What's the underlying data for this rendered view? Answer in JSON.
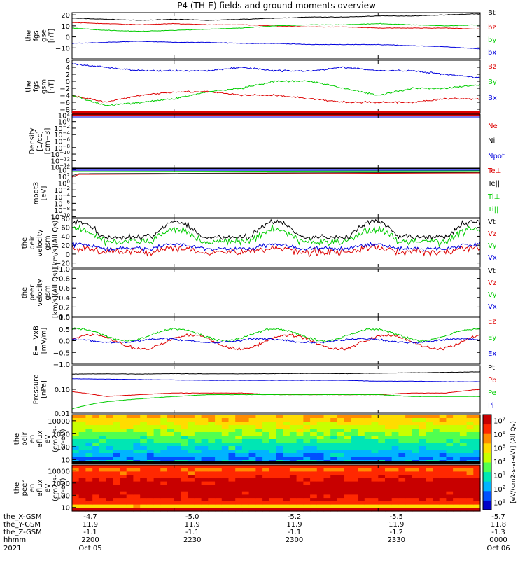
{
  "title": "P4 (TH-E) fields and ground moments overview",
  "time_axis": {
    "start": "2021-10-05 22:00",
    "end": "2021-10-06 00:00",
    "row_labels": [
      "the_X-GSM",
      "the_Y-GSM",
      "the_Z-GSM",
      "hhmm",
      "2021"
    ],
    "ticks": [
      {
        "x": "-4.7",
        "y": "11.9",
        "z": "-1.1",
        "hhmm": "2200",
        "date": "Oct 05"
      },
      {
        "x": "-5.0",
        "y": "11.9",
        "z": "-1.1",
        "hhmm": "2230",
        "date": ""
      },
      {
        "x": "-5.2",
        "y": "11.9",
        "z": "-1.1",
        "hhmm": "2300",
        "date": ""
      },
      {
        "x": "-5.5",
        "y": "11.9",
        "z": "-1.2",
        "hhmm": "2330",
        "date": ""
      },
      {
        "x": "-5.7",
        "y": "11.8",
        "z": "-1.3",
        "hhmm": "0000",
        "date": "Oct 06"
      }
    ]
  },
  "spectro_colorbar": {
    "unit": "[eV/(cm2-s-sr-eV)]",
    "qualifier": "(All Qs)",
    "ticks": [
      "10^1",
      "10^2",
      "10^3",
      "10^4",
      "10^5",
      "10^6",
      "10^7"
    ],
    "colors": [
      "#0000c8",
      "#0050ff",
      "#00b4ff",
      "#00e6b4",
      "#50ff50",
      "#c8ff00",
      "#ffdc00",
      "#ff8c00",
      "#ff2800",
      "#c80000"
    ]
  },
  "chart_data": [
    {
      "type": "line",
      "ylabel": [
        "the",
        "fgs",
        "gse",
        "[nT]"
      ],
      "ylim": [
        -20,
        22
      ],
      "yticks": [
        "20",
        "10",
        "0",
        "−10"
      ],
      "yticks_values": [
        20,
        10,
        0,
        -10
      ],
      "series": [
        {
          "name": "Bt",
          "color": "#000000",
          "values": [
            17,
            16,
            15,
            16,
            15,
            16,
            17,
            18,
            18,
            19,
            19,
            20,
            21
          ]
        },
        {
          "name": "bz",
          "color": "#dd0000",
          "values": [
            13,
            12,
            11,
            12,
            11,
            11,
            10,
            9,
            9,
            8,
            8,
            8,
            7
          ]
        },
        {
          "name": "by",
          "color": "#00cc00",
          "values": [
            8,
            6,
            5,
            6,
            7,
            8,
            10,
            11,
            11,
            12,
            11,
            10,
            11
          ]
        },
        {
          "name": "bx",
          "color": "#0000dd",
          "values": [
            -6,
            -5,
            -4,
            -5,
            -5,
            -6,
            -6,
            -7,
            -7,
            -7,
            -8,
            -9,
            -11
          ]
        }
      ]
    },
    {
      "type": "line",
      "ylabel": [
        "the",
        "fgs",
        "gsm",
        "[nT]"
      ],
      "ylim": [
        -9,
        6
      ],
      "yticks": [
        "6",
        "4",
        "2",
        "0",
        "−2",
        "−4",
        "−6",
        "−8"
      ],
      "yticks_values": [
        6,
        4,
        2,
        0,
        -2,
        -4,
        -6,
        -8
      ],
      "series": [
        {
          "name": "Bz",
          "color": "#dd0000",
          "values": [
            -4,
            -6,
            -4,
            -3,
            -3,
            -4,
            -4,
            -5,
            -6,
            -6,
            -6,
            -5,
            -5
          ]
        },
        {
          "name": "By",
          "color": "#00cc00",
          "values": [
            -4,
            -7,
            -6,
            -5,
            -3,
            -2,
            0,
            0,
            -2,
            -4,
            -2,
            -2,
            -1
          ]
        },
        {
          "name": "Bx",
          "color": "#0000dd",
          "values": [
            5,
            4,
            3,
            3,
            3,
            4,
            3,
            3,
            4,
            3,
            3,
            2,
            1
          ]
        }
      ]
    },
    {
      "type": "line",
      "ylabel": [
        "Density",
        "[1/cc]",
        "[cm−3]"
      ],
      "yscale": "log",
      "yticks": [
        "10^2",
        "10^0",
        "10^-2",
        "10^-4",
        "10^-6",
        "10^-8",
        "10^-10",
        "10^-12",
        "10^-14"
      ],
      "series": [
        {
          "name": "Ne",
          "color": "#dd0000"
        },
        {
          "name": "Ni",
          "color": "#000000"
        },
        {
          "name": "Npot",
          "color": "#0000dd"
        }
      ]
    },
    {
      "type": "line",
      "ylabel": [
        "moqt3",
        "[eV]"
      ],
      "yscale": "log",
      "yticks": [
        "10^4",
        "10^2",
        "10^0",
        "10^-2",
        "10^-4",
        "10^-6",
        "10^-8",
        "10^-10"
      ],
      "series": [
        {
          "name": "Te⊥",
          "color": "#dd0000"
        },
        {
          "name": "Te||",
          "color": "#000000"
        },
        {
          "name": "Ti⊥",
          "color": "#00cc00"
        },
        {
          "name": "Ti||",
          "color": "#00cc00"
        }
      ]
    },
    {
      "type": "line",
      "ylabel": [
        "the",
        "peir",
        "velocity",
        "gsm",
        "[km/s](All Qs)]"
      ],
      "ylim": [
        -30,
        80
      ],
      "yticks": [
        "80",
        "60",
        "40",
        "20",
        "0",
        "−20"
      ],
      "yticks_values": [
        80,
        60,
        40,
        20,
        0,
        -20
      ],
      "series": [
        {
          "name": "Vt",
          "color": "#000000"
        },
        {
          "name": "Vz",
          "color": "#dd0000"
        },
        {
          "name": "Vy",
          "color": "#00cc00"
        },
        {
          "name": "Vx",
          "color": "#0000dd"
        }
      ]
    },
    {
      "type": "line",
      "ylabel": [
        "the",
        "peer",
        "velocity",
        "gsm",
        "[km/s](All Qs)]"
      ],
      "ylim": [
        0,
        1
      ],
      "yticks": [
        "1.0",
        "0.8",
        "0.6",
        "0.4",
        "0.2",
        "0.0"
      ],
      "yticks_values": [
        1.0,
        0.8,
        0.6,
        0.4,
        0.2,
        0.0
      ],
      "series": [
        {
          "name": "Vt",
          "color": "#000000"
        },
        {
          "name": "Vz",
          "color": "#dd0000"
        },
        {
          "name": "Vy",
          "color": "#00cc00"
        },
        {
          "name": "Vx",
          "color": "#0000dd"
        }
      ]
    },
    {
      "type": "line",
      "ylabel": [
        "E=−VxB",
        "[mV/m]"
      ],
      "ylim": [
        -1.0,
        1.0
      ],
      "yticks": [
        "1.0",
        "0.5",
        "0.0",
        "−0.5",
        "−1.0"
      ],
      "yticks_values": [
        1.0,
        0.5,
        0.0,
        -0.5,
        -1.0
      ],
      "series": [
        {
          "name": "Ez",
          "color": "#dd0000"
        },
        {
          "name": "Ey",
          "color": "#00cc00"
        },
        {
          "name": "Ex",
          "color": "#0000dd"
        }
      ]
    },
    {
      "type": "line",
      "ylabel": [
        "Pressure",
        "[nPa]"
      ],
      "yscale": "log",
      "ylim": [
        0.01,
        1
      ],
      "yticks": [
        "0.10",
        "0.01"
      ],
      "yticks_values": [
        0.1,
        0.01
      ],
      "series": [
        {
          "name": "Pt",
          "color": "#000000",
          "values": [
            0.44,
            0.45,
            0.44,
            0.46,
            0.45,
            0.45,
            0.46,
            0.47,
            0.46,
            0.48,
            0.5,
            0.52,
            0.55
          ]
        },
        {
          "name": "Pb",
          "color": "#dd0000",
          "values": [
            0.08,
            0.05,
            0.06,
            0.07,
            0.07,
            0.07,
            0.06,
            0.06,
            0.06,
            0.06,
            0.07,
            0.07,
            0.1
          ]
        },
        {
          "name": "Pe",
          "color": "#00cc00",
          "values": [
            0.015,
            0.03,
            0.04,
            0.05,
            0.06,
            0.06,
            0.06,
            0.06,
            0.06,
            0.06,
            0.05,
            0.05,
            0.05
          ]
        },
        {
          "name": "Pi",
          "color": "#0000dd",
          "values": [
            0.28,
            0.27,
            0.26,
            0.25,
            0.24,
            0.24,
            0.24,
            0.24,
            0.24,
            0.22,
            0.22,
            0.21,
            0.21
          ]
        }
      ]
    },
    {
      "type": "heatmap",
      "ylabel": [
        "the",
        "peir",
        "en",
        "eflux",
        "eV",
        "(cm2-s-",
        "sr-eV)"
      ],
      "yscale": "log",
      "yticks": [
        "10000",
        "1000",
        "100",
        "10"
      ],
      "yticks_values": [
        10000,
        1000,
        100,
        10
      ]
    },
    {
      "type": "heatmap",
      "ylabel": [
        "the",
        "peer",
        "en",
        "eflux",
        "eV",
        "(cm2-s-",
        "sr-eV)"
      ],
      "yscale": "log",
      "yticks": [
        "10000",
        "1000",
        "100",
        "10"
      ],
      "yticks_values": [
        10000,
        1000,
        100,
        10
      ]
    }
  ]
}
